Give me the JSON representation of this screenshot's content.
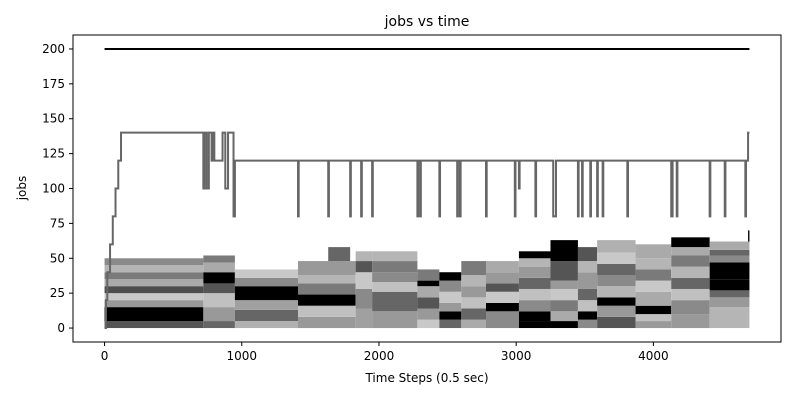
{
  "chart_data": {
    "type": "line",
    "title": "jobs vs time",
    "xlabel": "Time Steps (0.5 sec)",
    "ylabel": "jobs",
    "xlim": [
      -230,
      4930
    ],
    "ylim": [
      -10,
      210
    ],
    "xticks": [
      0,
      1000,
      2000,
      3000,
      4000
    ],
    "yticks": [
      0,
      25,
      50,
      75,
      100,
      125,
      150,
      175,
      200
    ],
    "grid": false,
    "series": [
      {
        "role": "capacity",
        "color": "#000000",
        "x": [
          0,
          4700
        ],
        "y": [
          200,
          200
        ]
      },
      {
        "role": "total",
        "color": "#666666",
        "x": [
          0,
          10,
          10,
          20,
          20,
          40,
          40,
          60,
          60,
          80,
          80,
          100,
          100,
          120,
          120,
          140,
          720,
          720,
          730,
          730,
          745,
          745,
          760,
          760,
          780,
          780,
          790,
          790,
          800,
          800,
          860,
          860,
          880,
          880,
          900,
          900,
          940,
          940,
          950,
          950,
          1410,
          1410,
          1415,
          1415,
          1630,
          1630,
          1635,
          1635,
          1790,
          1790,
          1795,
          1795,
          1870,
          1870,
          1875,
          1875,
          1950,
          1950,
          1955,
          1955,
          2280,
          2280,
          2285,
          2285,
          2300,
          2300,
          2305,
          2305,
          2440,
          2440,
          2445,
          2445,
          2570,
          2570,
          2575,
          2575,
          2590,
          2590,
          2595,
          2595,
          2780,
          2780,
          2785,
          2785,
          2990,
          2990,
          2995,
          2995,
          3020,
          3020,
          3025,
          3025,
          3140,
          3140,
          3145,
          3145,
          3270,
          3270,
          3290,
          3290,
          3450,
          3450,
          3455,
          3455,
          3480,
          3480,
          3485,
          3485,
          3540,
          3540,
          3545,
          3545,
          3590,
          3590,
          3595,
          3595,
          3630,
          3630,
          3635,
          3635,
          3810,
          3810,
          3815,
          3815,
          4130,
          4130,
          4140,
          4140,
          4170,
          4170,
          4175,
          4175,
          4410,
          4410,
          4415,
          4415,
          4520,
          4520,
          4525,
          4525,
          4670,
          4670,
          4675,
          4675,
          4690,
          4690,
          4700
        ],
        "y": [
          0,
          0,
          20,
          20,
          40,
          40,
          60,
          60,
          80,
          80,
          100,
          100,
          120,
          120,
          140,
          140,
          140,
          100,
          100,
          140,
          140,
          100,
          100,
          140,
          140,
          120,
          120,
          140,
          140,
          120,
          120,
          140,
          140,
          100,
          100,
          140,
          140,
          80,
          80,
          120,
          120,
          80,
          80,
          120,
          120,
          80,
          80,
          120,
          120,
          80,
          80,
          120,
          120,
          80,
          80,
          120,
          120,
          80,
          80,
          120,
          120,
          80,
          80,
          120,
          120,
          80,
          80,
          120,
          120,
          80,
          80,
          120,
          120,
          80,
          80,
          120,
          120,
          80,
          80,
          120,
          120,
          80,
          80,
          120,
          120,
          80,
          80,
          120,
          120,
          100,
          100,
          120,
          120,
          80,
          80,
          120,
          120,
          80,
          80,
          120,
          120,
          80,
          80,
          120,
          120,
          80,
          80,
          120,
          120,
          80,
          80,
          120,
          120,
          80,
          80,
          120,
          120,
          80,
          80,
          120,
          120,
          80,
          80,
          120,
          120,
          80,
          80,
          120,
          120,
          80,
          80,
          120,
          120,
          80,
          80,
          120,
          120,
          80,
          80,
          120,
          120,
          80,
          80,
          120,
          120,
          140,
          140
        ]
      }
    ],
    "stacked_blocks": [
      {
        "x0": 0,
        "x1": 720,
        "y0": 0,
        "y1": 5,
        "color": "#555555"
      },
      {
        "x0": 0,
        "x1": 720,
        "y0": 5,
        "y1": 15,
        "color": "#000000"
      },
      {
        "x0": 0,
        "x1": 720,
        "y0": 15,
        "y1": 20,
        "color": "#999999"
      },
      {
        "x0": 0,
        "x1": 720,
        "y0": 20,
        "y1": 25,
        "color": "#c8c8c8"
      },
      {
        "x0": 0,
        "x1": 720,
        "y0": 25,
        "y1": 30,
        "color": "#4d4d4d"
      },
      {
        "x0": 0,
        "x1": 720,
        "y0": 30,
        "y1": 35,
        "color": "#aaaaaa"
      },
      {
        "x0": 0,
        "x1": 720,
        "y0": 35,
        "y1": 40,
        "color": "#7a7a7a"
      },
      {
        "x0": 0,
        "x1": 720,
        "y0": 40,
        "y1": 45,
        "color": "#b5b5b5"
      },
      {
        "x0": 0,
        "x1": 720,
        "y0": 45,
        "y1": 50,
        "color": "#8a8a8a"
      },
      {
        "x0": 720,
        "x1": 950,
        "y0": 0,
        "y1": 5,
        "color": "#666666"
      },
      {
        "x0": 720,
        "x1": 950,
        "y0": 5,
        "y1": 15,
        "color": "#999999"
      },
      {
        "x0": 720,
        "x1": 950,
        "y0": 15,
        "y1": 25,
        "color": "#c0c0c0"
      },
      {
        "x0": 720,
        "x1": 950,
        "y0": 25,
        "y1": 32,
        "color": "#555555"
      },
      {
        "x0": 720,
        "x1": 950,
        "y0": 32,
        "y1": 40,
        "color": "#000000"
      },
      {
        "x0": 720,
        "x1": 950,
        "y0": 40,
        "y1": 47,
        "color": "#aaaaaa"
      },
      {
        "x0": 720,
        "x1": 950,
        "y0": 47,
        "y1": 52,
        "color": "#7a7a7a"
      },
      {
        "x0": 950,
        "x1": 1410,
        "y0": 0,
        "y1": 5,
        "color": "#b0b0b0"
      },
      {
        "x0": 950,
        "x1": 1410,
        "y0": 5,
        "y1": 13,
        "color": "#666666"
      },
      {
        "x0": 950,
        "x1": 1410,
        "y0": 13,
        "y1": 20,
        "color": "#a0a0a0"
      },
      {
        "x0": 950,
        "x1": 1410,
        "y0": 20,
        "y1": 30,
        "color": "#000000"
      },
      {
        "x0": 950,
        "x1": 1410,
        "y0": 30,
        "y1": 36,
        "color": "#8a8a8a"
      },
      {
        "x0": 950,
        "x1": 1410,
        "y0": 36,
        "y1": 42,
        "color": "#c8c8c8"
      },
      {
        "x0": 1410,
        "x1": 1830,
        "y0": 0,
        "y1": 8,
        "color": "#999999"
      },
      {
        "x0": 1410,
        "x1": 1830,
        "y0": 8,
        "y1": 16,
        "color": "#c0c0c0"
      },
      {
        "x0": 1410,
        "x1": 1830,
        "y0": 16,
        "y1": 24,
        "color": "#000000"
      },
      {
        "x0": 1410,
        "x1": 1830,
        "y0": 24,
        "y1": 32,
        "color": "#7a7a7a"
      },
      {
        "x0": 1410,
        "x1": 1830,
        "y0": 32,
        "y1": 38,
        "color": "#b5b5b5"
      },
      {
        "x0": 1410,
        "x1": 1830,
        "y0": 38,
        "y1": 48,
        "color": "#999999"
      },
      {
        "x0": 1630,
        "x1": 1790,
        "y0": 48,
        "y1": 58,
        "color": "#666666"
      },
      {
        "x0": 1830,
        "x1": 1950,
        "y0": 0,
        "y1": 14,
        "color": "#a0a0a0"
      },
      {
        "x0": 1830,
        "x1": 1950,
        "y0": 14,
        "y1": 28,
        "color": "#8a8a8a"
      },
      {
        "x0": 1830,
        "x1": 1950,
        "y0": 28,
        "y1": 40,
        "color": "#c8c8c8"
      },
      {
        "x0": 1830,
        "x1": 1950,
        "y0": 40,
        "y1": 48,
        "color": "#555555"
      },
      {
        "x0": 1830,
        "x1": 1950,
        "y0": 48,
        "y1": 55,
        "color": "#b5b5b5"
      },
      {
        "x0": 1950,
        "x1": 2280,
        "y0": 0,
        "y1": 12,
        "color": "#999999"
      },
      {
        "x0": 1950,
        "x1": 2280,
        "y0": 12,
        "y1": 26,
        "color": "#666666"
      },
      {
        "x0": 1950,
        "x1": 2280,
        "y0": 26,
        "y1": 33,
        "color": "#c0c0c0"
      },
      {
        "x0": 1950,
        "x1": 2280,
        "y0": 33,
        "y1": 40,
        "color": "#8a8a8a"
      },
      {
        "x0": 1950,
        "x1": 2280,
        "y0": 40,
        "y1": 48,
        "color": "#7a7a7a"
      },
      {
        "x0": 1950,
        "x1": 2280,
        "y0": 48,
        "y1": 55,
        "color": "#b5b5b5"
      },
      {
        "x0": 2280,
        "x1": 2440,
        "y0": 0,
        "y1": 6,
        "color": "#c8c8c8"
      },
      {
        "x0": 2280,
        "x1": 2440,
        "y0": 6,
        "y1": 14,
        "color": "#999999"
      },
      {
        "x0": 2280,
        "x1": 2440,
        "y0": 14,
        "y1": 22,
        "color": "#555555"
      },
      {
        "x0": 2280,
        "x1": 2440,
        "y0": 22,
        "y1": 30,
        "color": "#aaaaaa"
      },
      {
        "x0": 2280,
        "x1": 2440,
        "y0": 30,
        "y1": 34,
        "color": "#000000"
      },
      {
        "x0": 2280,
        "x1": 2440,
        "y0": 34,
        "y1": 42,
        "color": "#7a7a7a"
      },
      {
        "x0": 2440,
        "x1": 2600,
        "y0": 0,
        "y1": 6,
        "color": "#666666"
      },
      {
        "x0": 2440,
        "x1": 2600,
        "y0": 6,
        "y1": 12,
        "color": "#000000"
      },
      {
        "x0": 2440,
        "x1": 2600,
        "y0": 12,
        "y1": 18,
        "color": "#999999"
      },
      {
        "x0": 2440,
        "x1": 2600,
        "y0": 18,
        "y1": 26,
        "color": "#c8c8c8"
      },
      {
        "x0": 2440,
        "x1": 2600,
        "y0": 26,
        "y1": 34,
        "color": "#8a8a8a"
      },
      {
        "x0": 2440,
        "x1": 2600,
        "y0": 34,
        "y1": 40,
        "color": "#000000"
      },
      {
        "x0": 2600,
        "x1": 2780,
        "y0": 0,
        "y1": 6,
        "color": "#aaaaaa"
      },
      {
        "x0": 2600,
        "x1": 2780,
        "y0": 6,
        "y1": 14,
        "color": "#666666"
      },
      {
        "x0": 2600,
        "x1": 2780,
        "y0": 14,
        "y1": 22,
        "color": "#c0c0c0"
      },
      {
        "x0": 2600,
        "x1": 2780,
        "y0": 22,
        "y1": 30,
        "color": "#999999"
      },
      {
        "x0": 2600,
        "x1": 2780,
        "y0": 30,
        "y1": 38,
        "color": "#b5b5b5"
      },
      {
        "x0": 2600,
        "x1": 2780,
        "y0": 38,
        "y1": 48,
        "color": "#7a7a7a"
      },
      {
        "x0": 2780,
        "x1": 3020,
        "y0": 0,
        "y1": 12,
        "color": "#8a8a8a"
      },
      {
        "x0": 2780,
        "x1": 3020,
        "y0": 12,
        "y1": 18,
        "color": "#000000"
      },
      {
        "x0": 2780,
        "x1": 3020,
        "y0": 18,
        "y1": 26,
        "color": "#c8c8c8"
      },
      {
        "x0": 2780,
        "x1": 3020,
        "y0": 26,
        "y1": 32,
        "color": "#555555"
      },
      {
        "x0": 2780,
        "x1": 3020,
        "y0": 32,
        "y1": 40,
        "color": "#999999"
      },
      {
        "x0": 2780,
        "x1": 3020,
        "y0": 40,
        "y1": 48,
        "color": "#aaaaaa"
      },
      {
        "x0": 3020,
        "x1": 3250,
        "y0": 0,
        "y1": 5,
        "color": "#000000"
      },
      {
        "x0": 3020,
        "x1": 3250,
        "y0": 5,
        "y1": 12,
        "color": "#000000"
      },
      {
        "x0": 3020,
        "x1": 3250,
        "y0": 12,
        "y1": 20,
        "color": "#8a8a8a"
      },
      {
        "x0": 3020,
        "x1": 3250,
        "y0": 20,
        "y1": 28,
        "color": "#c0c0c0"
      },
      {
        "x0": 3020,
        "x1": 3250,
        "y0": 28,
        "y1": 36,
        "color": "#666666"
      },
      {
        "x0": 3020,
        "x1": 3250,
        "y0": 36,
        "y1": 44,
        "color": "#999999"
      },
      {
        "x0": 3020,
        "x1": 3250,
        "y0": 44,
        "y1": 50,
        "color": "#b5b5b5"
      },
      {
        "x0": 3020,
        "x1": 3250,
        "y0": 50,
        "y1": 55,
        "color": "#000000"
      },
      {
        "x0": 3250,
        "x1": 3450,
        "y0": 0,
        "y1": 5,
        "color": "#000000"
      },
      {
        "x0": 3250,
        "x1": 3450,
        "y0": 5,
        "y1": 12,
        "color": "#aaaaaa"
      },
      {
        "x0": 3250,
        "x1": 3450,
        "y0": 12,
        "y1": 20,
        "color": "#7a7a7a"
      },
      {
        "x0": 3250,
        "x1": 3450,
        "y0": 20,
        "y1": 28,
        "color": "#c8c8c8"
      },
      {
        "x0": 3250,
        "x1": 3450,
        "y0": 28,
        "y1": 34,
        "color": "#999999"
      },
      {
        "x0": 3250,
        "x1": 3450,
        "y0": 34,
        "y1": 48,
        "color": "#555555"
      },
      {
        "x0": 3250,
        "x1": 3450,
        "y0": 48,
        "y1": 63,
        "color": "#000000"
      },
      {
        "x0": 3450,
        "x1": 3590,
        "y0": 0,
        "y1": 6,
        "color": "#8a8a8a"
      },
      {
        "x0": 3450,
        "x1": 3590,
        "y0": 6,
        "y1": 12,
        "color": "#000000"
      },
      {
        "x0": 3450,
        "x1": 3590,
        "y0": 12,
        "y1": 20,
        "color": "#c0c0c0"
      },
      {
        "x0": 3450,
        "x1": 3590,
        "y0": 20,
        "y1": 28,
        "color": "#666666"
      },
      {
        "x0": 3450,
        "x1": 3590,
        "y0": 28,
        "y1": 40,
        "color": "#999999"
      },
      {
        "x0": 3450,
        "x1": 3590,
        "y0": 40,
        "y1": 48,
        "color": "#b5b5b5"
      },
      {
        "x0": 3450,
        "x1": 3590,
        "y0": 48,
        "y1": 58,
        "color": "#555555"
      },
      {
        "x0": 3590,
        "x1": 3870,
        "y0": 0,
        "y1": 8,
        "color": "#555555"
      },
      {
        "x0": 3590,
        "x1": 3870,
        "y0": 8,
        "y1": 16,
        "color": "#999999"
      },
      {
        "x0": 3590,
        "x1": 3870,
        "y0": 16,
        "y1": 22,
        "color": "#000000"
      },
      {
        "x0": 3590,
        "x1": 3870,
        "y0": 22,
        "y1": 30,
        "color": "#b5b5b5"
      },
      {
        "x0": 3590,
        "x1": 3870,
        "y0": 30,
        "y1": 38,
        "color": "#8a8a8a"
      },
      {
        "x0": 3590,
        "x1": 3870,
        "y0": 38,
        "y1": 46,
        "color": "#666666"
      },
      {
        "x0": 3590,
        "x1": 3870,
        "y0": 46,
        "y1": 54,
        "color": "#c8c8c8"
      },
      {
        "x0": 3590,
        "x1": 3870,
        "y0": 54,
        "y1": 63,
        "color": "#b0b0b0"
      },
      {
        "x0": 3870,
        "x1": 4130,
        "y0": 0,
        "y1": 5,
        "color": "#999999"
      },
      {
        "x0": 3870,
        "x1": 4130,
        "y0": 5,
        "y1": 10,
        "color": "#c0c0c0"
      },
      {
        "x0": 3870,
        "x1": 4130,
        "y0": 10,
        "y1": 16,
        "color": "#000000"
      },
      {
        "x0": 3870,
        "x1": 4130,
        "y0": 16,
        "y1": 26,
        "color": "#aaaaaa"
      },
      {
        "x0": 3870,
        "x1": 4130,
        "y0": 26,
        "y1": 34,
        "color": "#c8c8c8"
      },
      {
        "x0": 3870,
        "x1": 4130,
        "y0": 34,
        "y1": 42,
        "color": "#7a7a7a"
      },
      {
        "x0": 3870,
        "x1": 4130,
        "y0": 42,
        "y1": 50,
        "color": "#b5b5b5"
      },
      {
        "x0": 3870,
        "x1": 4130,
        "y0": 50,
        "y1": 60,
        "color": "#aaaaaa"
      },
      {
        "x0": 4130,
        "x1": 4410,
        "y0": 0,
        "y1": 10,
        "color": "#999999"
      },
      {
        "x0": 4130,
        "x1": 4410,
        "y0": 10,
        "y1": 20,
        "color": "#8a8a8a"
      },
      {
        "x0": 4130,
        "x1": 4410,
        "y0": 20,
        "y1": 28,
        "color": "#c0c0c0"
      },
      {
        "x0": 4130,
        "x1": 4410,
        "y0": 28,
        "y1": 36,
        "color": "#666666"
      },
      {
        "x0": 4130,
        "x1": 4410,
        "y0": 36,
        "y1": 44,
        "color": "#b5b5b5"
      },
      {
        "x0": 4130,
        "x1": 4410,
        "y0": 44,
        "y1": 52,
        "color": "#7a7a7a"
      },
      {
        "x0": 4130,
        "x1": 4410,
        "y0": 52,
        "y1": 58,
        "color": "#aaaaaa"
      },
      {
        "x0": 4130,
        "x1": 4410,
        "y0": 58,
        "y1": 65,
        "color": "#000000"
      },
      {
        "x0": 4410,
        "x1": 4700,
        "y0": 0,
        "y1": 15,
        "color": "#b5b5b5"
      },
      {
        "x0": 4410,
        "x1": 4700,
        "y0": 15,
        "y1": 22,
        "color": "#999999"
      },
      {
        "x0": 4410,
        "x1": 4700,
        "y0": 22,
        "y1": 27,
        "color": "#666666"
      },
      {
        "x0": 4410,
        "x1": 4700,
        "y0": 27,
        "y1": 35,
        "color": "#000000"
      },
      {
        "x0": 4410,
        "x1": 4700,
        "y0": 35,
        "y1": 47,
        "color": "#000000"
      },
      {
        "x0": 4410,
        "x1": 4700,
        "y0": 47,
        "y1": 52,
        "color": "#8a8a8a"
      },
      {
        "x0": 4410,
        "x1": 4700,
        "y0": 52,
        "y1": 56,
        "color": "#666666"
      },
      {
        "x0": 4410,
        "x1": 4700,
        "y0": 56,
        "y1": 62,
        "color": "#aaaaaa"
      },
      {
        "x0": 4690,
        "x1": 4700,
        "y0": 62,
        "y1": 70,
        "color": "#000000"
      }
    ]
  }
}
